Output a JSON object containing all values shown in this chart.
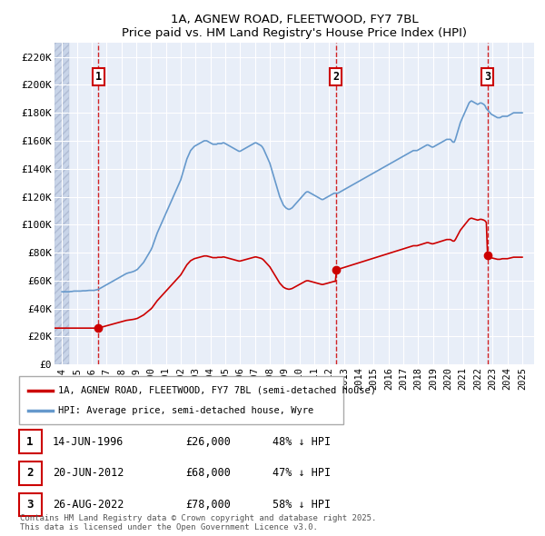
{
  "title": "1A, AGNEW ROAD, FLEETWOOD, FY7 7BL",
  "subtitle": "Price paid vs. HM Land Registry's House Price Index (HPI)",
  "legend_label_red": "1A, AGNEW ROAD, FLEETWOOD, FY7 7BL (semi-detached house)",
  "legend_label_blue": "HPI: Average price, semi-detached house, Wyre",
  "footer": "Contains HM Land Registry data © Crown copyright and database right 2025.\nThis data is licensed under the Open Government Licence v3.0.",
  "sale_info": [
    [
      "1",
      "14-JUN-1996",
      "£26,000",
      "48% ↓ HPI"
    ],
    [
      "2",
      "20-JUN-2012",
      "£68,000",
      "47% ↓ HPI"
    ],
    [
      "3",
      "26-AUG-2022",
      "£78,000",
      "58% ↓ HPI"
    ]
  ],
  "sale_years": [
    1996.46,
    2012.46,
    2022.66
  ],
  "sale_prices": [
    26000,
    68000,
    78000
  ],
  "red_color": "#cc0000",
  "blue_color": "#6699cc",
  "bg_color": "#e8eef8",
  "white": "#ffffff",
  "ylim": [
    0,
    230000
  ],
  "ytick_vals": [
    0,
    20000,
    40000,
    60000,
    80000,
    100000,
    120000,
    140000,
    160000,
    180000,
    200000,
    220000
  ],
  "xlim": [
    1993.5,
    2025.8
  ],
  "xtick_vals": [
    1994,
    1995,
    1996,
    1997,
    1998,
    1999,
    2000,
    2001,
    2002,
    2003,
    2004,
    2005,
    2006,
    2007,
    2008,
    2009,
    2010,
    2011,
    2012,
    2013,
    2014,
    2015,
    2016,
    2017,
    2018,
    2019,
    2020,
    2021,
    2022,
    2023,
    2024,
    2025
  ]
}
